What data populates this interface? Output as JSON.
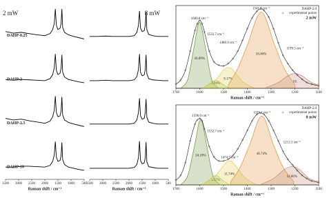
{
  "chart_data": [
    {
      "type": "line",
      "title": "2 mW",
      "x_label": "Raman shift / cm⁻¹",
      "xlim": [
        3500,
        500
      ],
      "xticks": [
        3500,
        3000,
        2500,
        2000,
        1500,
        1000,
        500
      ],
      "ylim": [
        0,
        100
      ],
      "x": [
        3500,
        3200,
        2900,
        2600,
        2300,
        2000,
        1800,
        1700,
        1640,
        1600,
        1560,
        1500,
        1420,
        1380,
        1350,
        1320,
        1250,
        1100,
        900,
        700,
        500
      ],
      "series": [
        {
          "name": "DAHP-0.25",
          "color": "#000000",
          "values": [
            40,
            36,
            38,
            35,
            32,
            30,
            35,
            45,
            60,
            95,
            55,
            45,
            48,
            60,
            95,
            50,
            38,
            32,
            28,
            25,
            22
          ]
        },
        {
          "name": "DAHP-2",
          "color": "#000000",
          "values": [
            30,
            28,
            30,
            29,
            28,
            27,
            32,
            42,
            58,
            92,
            52,
            42,
            45,
            58,
            90,
            48,
            36,
            30,
            27,
            24,
            22
          ]
        },
        {
          "name": "DAHP-2.5",
          "color": "#000000",
          "values": [
            42,
            38,
            40,
            36,
            33,
            30,
            35,
            46,
            62,
            96,
            56,
            46,
            48,
            60,
            94,
            50,
            38,
            32,
            28,
            25,
            22
          ]
        },
        {
          "name": "DAHP-10",
          "color": "#000000",
          "values": [
            30,
            30,
            32,
            32,
            31,
            30,
            34,
            44,
            60,
            92,
            54,
            44,
            46,
            58,
            90,
            48,
            36,
            30,
            27,
            24,
            22
          ]
        }
      ]
    },
    {
      "type": "line",
      "title": "8 mW",
      "x_label": "Raman shift / cm⁻¹",
      "xlim": [
        3500,
        500
      ],
      "xticks": [
        3500,
        3000,
        2500,
        2000,
        1500,
        1000,
        500
      ],
      "ylim": [
        0,
        100
      ],
      "x": [
        3500,
        3200,
        2900,
        2600,
        2300,
        2000,
        1800,
        1700,
        1640,
        1600,
        1560,
        1500,
        1420,
        1380,
        1350,
        1320,
        1250,
        1100,
        900,
        700,
        500
      ],
      "series": [
        {
          "color": "#000000",
          "values": [
            28,
            28,
            29,
            28,
            28,
            28,
            30,
            38,
            55,
            90,
            48,
            40,
            42,
            55,
            88,
            45,
            33,
            30,
            28,
            28,
            28
          ]
        },
        {
          "color": "#000000",
          "values": [
            27,
            27,
            28,
            27,
            27,
            27,
            29,
            37,
            54,
            92,
            47,
            39,
            41,
            54,
            90,
            44,
            32,
            29,
            28,
            27,
            27
          ]
        },
        {
          "color": "#000000",
          "values": [
            28,
            28,
            28,
            28,
            28,
            28,
            30,
            38,
            56,
            91,
            48,
            40,
            42,
            56,
            89,
            45,
            33,
            30,
            28,
            28,
            28
          ]
        },
        {
          "color": "#000000",
          "values": [
            27,
            27,
            27,
            27,
            27,
            27,
            29,
            36,
            53,
            93,
            46,
            38,
            40,
            53,
            91,
            43,
            31,
            29,
            27,
            27,
            27
          ]
        }
      ]
    },
    {
      "type": "peakfit",
      "title": "DAHP-2.0",
      "legend": "experimental points",
      "subtitle": "2 mW",
      "x_label": "Raman shift / cm⁻¹",
      "xlim": [
        1700,
        1100
      ],
      "xticks": [
        1700,
        1600,
        1500,
        1400,
        1300,
        1200,
        1100
      ],
      "ylim": [
        0,
        100
      ],
      "marker_color": "#333333",
      "x": [
        1700,
        1680,
        1660,
        1640,
        1620,
        1610,
        1600,
        1590,
        1580,
        1560,
        1540,
        1520,
        1500,
        1480,
        1460,
        1440,
        1420,
        1400,
        1380,
        1360,
        1345,
        1330,
        1310,
        1290,
        1270,
        1250,
        1230,
        1210,
        1190,
        1170,
        1150,
        1130,
        1100
      ],
      "values": [
        5,
        10,
        22,
        45,
        70,
        78,
        82,
        78,
        68,
        45,
        32,
        28,
        27,
        30,
        36,
        45,
        58,
        72,
        85,
        93,
        96,
        94,
        86,
        72,
        55,
        40,
        30,
        22,
        16,
        11,
        7,
        5,
        3
      ],
      "series": [
        {
          "name": "1600.8 cm⁻¹",
          "area_label": "26.09%",
          "color": "#7d9a4e",
          "x": [
            1680,
            1650,
            1625,
            1600.8,
            1575,
            1550,
            1520
          ],
          "values": [
            0,
            11,
            48,
            80,
            48,
            11,
            0
          ]
        },
        {
          "name": "1532.7 cm⁻¹",
          "area_label": "3.99%",
          "color": "#a8d05a",
          "x": [
            1590,
            1560,
            1532.7,
            1505,
            1475
          ],
          "values": [
            0,
            5,
            10,
            5,
            0
          ]
        },
        {
          "name": "1480.9 cm⁻¹",
          "area_label": "9.17%",
          "color": "#e6cf5c",
          "x": [
            1590,
            1540,
            1500,
            1480.9,
            1460,
            1420,
            1370
          ],
          "values": [
            0,
            8,
            22,
            25,
            22,
            8,
            0
          ]
        },
        {
          "name": "1341.9 cm⁻¹",
          "area_label": "50.40%",
          "color": "#e09a48",
          "x": [
            1480,
            1440,
            1400,
            1341.9,
            1285,
            1245,
            1200
          ],
          "values": [
            4,
            24,
            52,
            92,
            52,
            24,
            4
          ]
        },
        {
          "name": "1199.5 cm⁻¹",
          "area_label": "10.",
          "color": "#c8937a",
          "x": [
            1320,
            1270,
            1230,
            1199.5,
            1170,
            1130,
            1100
          ],
          "values": [
            1,
            7,
            15,
            18,
            15,
            7,
            4
          ]
        }
      ]
    },
    {
      "type": "peakfit",
      "title": "DAHP-2.0",
      "legend": "experimental points",
      "subtitle": "8 mW",
      "x_label": "Raman shift / cm⁻¹",
      "xlim": [
        1700,
        1100
      ],
      "xticks": [
        1700,
        1600,
        1500,
        1400,
        1300,
        1200,
        1100
      ],
      "ylim": [
        0,
        100
      ],
      "marker_color": "#333333",
      "x": [
        1700,
        1680,
        1660,
        1640,
        1620,
        1610,
        1600,
        1590,
        1580,
        1560,
        1540,
        1520,
        1500,
        1480,
        1460,
        1440,
        1420,
        1400,
        1380,
        1360,
        1345,
        1330,
        1310,
        1290,
        1270,
        1250,
        1230,
        1210,
        1190,
        1170,
        1150,
        1130,
        1100
      ],
      "values": [
        6,
        12,
        28,
        55,
        76,
        81,
        83,
        80,
        70,
        48,
        35,
        30,
        30,
        32,
        37,
        45,
        56,
        68,
        80,
        88,
        90,
        88,
        80,
        68,
        55,
        42,
        32,
        25,
        18,
        12,
        8,
        5,
        3
      ],
      "series": [
        {
          "name": "1596.0 cm⁻¹",
          "area_label": "24.10%",
          "color": "#7d9a4e",
          "x": [
            1680,
            1650,
            1621,
            1596.0,
            1571,
            1545,
            1515
          ],
          "values": [
            0,
            12,
            50,
            82,
            50,
            12,
            0
          ]
        },
        {
          "name": "1532.7 cm⁻¹",
          "area_label": "4.57%",
          "color": "#a8d05a",
          "x": [
            1590,
            1560,
            1532.7,
            1505,
            1475
          ],
          "values": [
            0,
            6,
            12,
            6,
            0
          ]
        },
        {
          "name": "1474.7 cm⁻¹",
          "area_label": "11.74%",
          "color": "#e6cf5c",
          "x": [
            1590,
            1540,
            1495,
            1474.7,
            1455,
            1410,
            1360
          ],
          "values": [
            0,
            9,
            26,
            30,
            26,
            9,
            0
          ]
        },
        {
          "name": "1339.1 cm⁻¹",
          "area_label": "46.74%",
          "color": "#e09a48",
          "x": [
            1470,
            1430,
            1390,
            1339.1,
            1290,
            1250,
            1205
          ],
          "values": [
            4,
            22,
            50,
            86,
            50,
            22,
            4
          ]
        },
        {
          "name": "1212.5 cm⁻¹",
          "area_label": "12.86%",
          "color": "#c8937a",
          "x": [
            1340,
            1290,
            1245,
            1212.5,
            1180,
            1140,
            1100
          ],
          "values": [
            1,
            8,
            19,
            23,
            19,
            8,
            4
          ]
        }
      ]
    }
  ]
}
